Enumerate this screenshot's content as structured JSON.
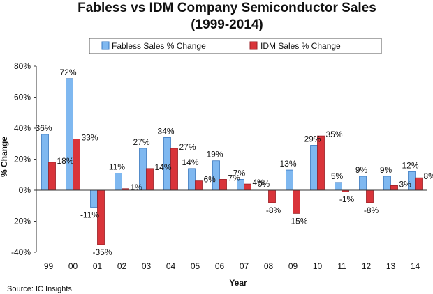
{
  "chart_data": {
    "type": "bar",
    "title_line1": "Fabless vs IDM Company Semiconductor Sales",
    "title_line2": "(1999-2014)",
    "xlabel": "Year",
    "ylabel": "% Change",
    "ylim": [
      -40,
      80
    ],
    "yticks": [
      "-40%",
      "-20%",
      "0%",
      "20%",
      "40%",
      "60%",
      "80%"
    ],
    "ytick_values": [
      -40,
      -20,
      0,
      20,
      40,
      60,
      80
    ],
    "categories": [
      "99",
      "00",
      "01",
      "02",
      "03",
      "04",
      "05",
      "06",
      "07",
      "08",
      "09",
      "10",
      "11",
      "12",
      "13",
      "14"
    ],
    "series": [
      {
        "name": "Fabless Sales % Change",
        "color": "#7fb8f0",
        "stroke": "#3a78c0",
        "values": [
          36,
          72,
          -11,
          11,
          27,
          34,
          14,
          19,
          7,
          0,
          13,
          29,
          5,
          9,
          9,
          12
        ],
        "labels": [
          "36%",
          "72%",
          "-11%",
          "11%",
          "27%",
          "34%",
          "14%",
          "19%",
          "7%",
          "0%",
          "13%",
          "29%",
          "5%",
          "9%",
          "9%",
          "12%"
        ]
      },
      {
        "name": "IDM Sales % Change",
        "color": "#d9343a",
        "stroke": "#9a1f24",
        "values": [
          18,
          33,
          -35,
          1,
          14,
          27,
          6,
          7,
          4,
          -8,
          -15,
          35,
          -1,
          -8,
          3,
          8
        ],
        "labels": [
          "18%",
          "33%",
          "-35%",
          "1%",
          "14%",
          "27%",
          "6%",
          "7%",
          "4%",
          "-8%",
          "-15%",
          "35%",
          "-1%",
          "-8%",
          "3%",
          "8%"
        ]
      }
    ],
    "legend_position": "top",
    "grid": false
  },
  "source": "Source: IC Insights"
}
